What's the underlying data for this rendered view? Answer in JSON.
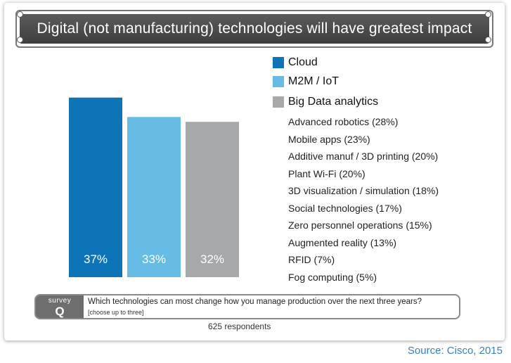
{
  "title": "Digital (not manufacturing) technologies will have greatest impact",
  "colors": {
    "cloud": "#0d74b8",
    "m2m": "#66bce4",
    "bigdata": "#a7a8aa",
    "title_bg": "#4a4a4a",
    "source": "#3a7fc1"
  },
  "chart_data": {
    "type": "bar",
    "categories": [
      "Cloud",
      "M2M / IoT",
      "Big Data analytics"
    ],
    "values": [
      37,
      33,
      32
    ],
    "data_labels": [
      "37%",
      "33%",
      "32%"
    ],
    "unit": "%",
    "ylim": [
      0,
      50
    ],
    "grid": false,
    "legend_placement": "right",
    "other_responses": [
      {
        "label": "Advanced robotics (28%)",
        "value": 28
      },
      {
        "label": "Mobile apps (23%)",
        "value": 23
      },
      {
        "label": "Additive manuf / 3D printing (20%)",
        "value": 20
      },
      {
        "label": "Plant Wi-Fi (20%)",
        "value": 20
      },
      {
        "label": "3D visualization / simulation (18%)",
        "value": 18
      },
      {
        "label": "Social technologies (17%)",
        "value": 17
      },
      {
        "label": "Zero personnel operations (15%)",
        "value": 15
      },
      {
        "label": "Augmented reality (13%)",
        "value": 13
      },
      {
        "label": "RFID (7%)",
        "value": 7
      },
      {
        "label": "Fog computing (5%)",
        "value": 5
      }
    ]
  },
  "survey": {
    "tag_word": "survey",
    "tag_letter": "Q",
    "question": "Which technologies can most change how you manage production over the next three years?",
    "note": "[choose up to three]"
  },
  "respondents": "625 respondents",
  "source": "Source: Cisco, 2015"
}
